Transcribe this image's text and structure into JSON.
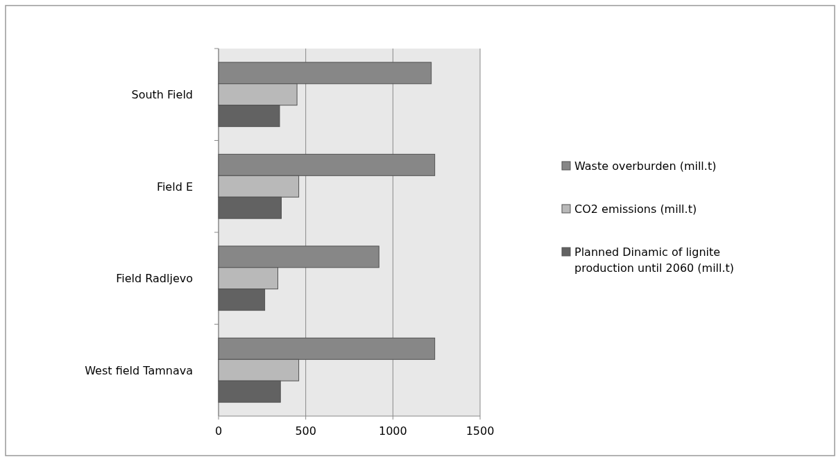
{
  "chart_data": {
    "type": "bar",
    "orientation": "horizontal",
    "categories": [
      "South Field",
      "Field E",
      "Field Radljevo",
      "West field Tamnava"
    ],
    "series": [
      {
        "name": "Waste overburden (mill.t)",
        "color": "#878787",
        "values": [
          1220,
          1240,
          920,
          1240
        ]
      },
      {
        "name": "CO2 emissions (mill.t)",
        "color": "#b9b9b9",
        "values": [
          450,
          460,
          340,
          460
        ]
      },
      {
        "name": "Planned Dinamic of lignite production until 2060 (mill.t)",
        "color": "#626262",
        "values": [
          350,
          360,
          265,
          355
        ]
      }
    ],
    "xlim": [
      0,
      1500
    ],
    "xticks": [
      0,
      500,
      1000,
      1500
    ],
    "grid": "x",
    "legend": "right"
  }
}
